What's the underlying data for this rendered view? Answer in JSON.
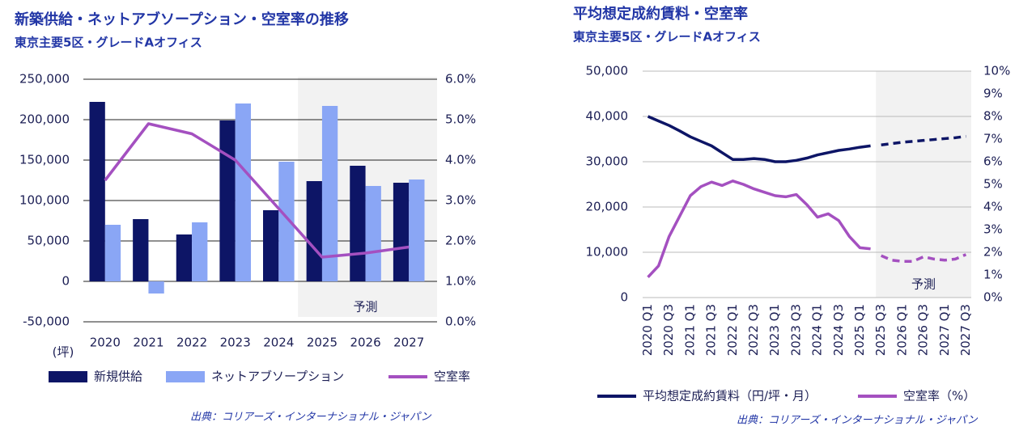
{
  "chart_data": [
    {
      "type": "bar",
      "title": "新築供給・ネットアブソープション・空室率の推移",
      "subtitle": "東京主要5区・グレードAオフィス",
      "unit_label": "(坪)",
      "source": "出典：コリアーズ・インターナショナル・ジャパン",
      "categories": [
        "2020",
        "2021",
        "2022",
        "2023",
        "2024",
        "2025",
        "2026",
        "2027"
      ],
      "series": [
        {
          "name": "新規供給",
          "color": "#0d1566",
          "values": [
            222000,
            77000,
            58000,
            199000,
            88000,
            124000,
            143000,
            122000
          ]
        },
        {
          "name": "ネットアブソープション",
          "color": "#8aa6f5",
          "values": [
            70000,
            -15000,
            73000,
            220000,
            148000,
            217000,
            118000,
            126000
          ]
        },
        {
          "name": "空室率",
          "color": "#a450c0",
          "type": "line",
          "axis": "y2",
          "values": [
            3.5,
            4.9,
            4.65,
            4.0,
            2.8,
            1.6,
            1.7,
            1.85
          ]
        }
      ],
      "ylim": [
        -50000,
        250000
      ],
      "yticks": [
        {
          "value": -50000,
          "label": "-50,000"
        },
        0,
        {
          "value": 50000,
          "label": "50,000"
        },
        {
          "value": 100000,
          "label": "100,000"
        },
        {
          "value": 150000,
          "label": "150,000"
        },
        {
          "value": 200000,
          "label": "200,000"
        },
        {
          "value": 250000,
          "label": "250,000"
        }
      ],
      "y2lim": [
        0,
        6
      ],
      "y2ticks": [
        {
          "value": 0,
          "label": "0.0%"
        },
        {
          "value": 1,
          "label": "1.0%"
        },
        {
          "value": 2,
          "label": "2.0%"
        },
        {
          "value": 3,
          "label": "3.0%"
        },
        {
          "value": 4,
          "label": "4.0%"
        },
        {
          "value": 5,
          "label": "5.0%"
        },
        {
          "value": 6,
          "label": "6.0%"
        }
      ],
      "grid": true,
      "forecast": {
        "label": "予測",
        "from": "2025"
      }
    },
    {
      "type": "line",
      "title": "平均想定成約賃料・空室率",
      "subtitle": "東京主要5区・グレードAオフィス",
      "source": "出典：コリアーズ・インターナショナル・ジャパン",
      "categories": [
        "2020 Q1",
        null,
        "2020 Q3",
        null,
        "2021 Q1",
        null,
        "2021 Q3",
        null,
        "2022 Q1",
        null,
        "2022 Q3",
        null,
        "2023 Q1",
        null,
        "2023 Q3",
        null,
        "2024 Q1",
        null,
        "2024 Q3",
        null,
        "2025 Q1",
        null,
        "2025 Q3",
        null,
        "2026 Q1",
        null,
        "2026 Q3",
        null,
        "2027 Q1",
        null,
        "2027 Q3"
      ],
      "series": [
        {
          "name": "平均想定成約賃料（円/坪・月）",
          "color": "#0d1566",
          "values": [
            40000,
            39000,
            38000,
            36800,
            35500,
            34500,
            33500,
            32000,
            30500,
            30500,
            30700,
            30500,
            30000,
            30000,
            30300,
            30800,
            31500,
            32000,
            32500,
            32800,
            33200,
            33500,
            33700,
            34000,
            34300,
            34500,
            34700,
            34900,
            35100,
            35300,
            35600
          ]
        },
        {
          "name": "空室率（%）",
          "color": "#a450c0",
          "axis": "y2",
          "values": [
            0.9,
            1.4,
            2.7,
            3.6,
            4.5,
            4.9,
            5.1,
            4.95,
            5.15,
            5.0,
            4.8,
            4.65,
            4.5,
            4.45,
            4.55,
            4.1,
            3.55,
            3.7,
            3.4,
            2.7,
            2.2,
            2.15,
            1.85,
            1.65,
            1.6,
            1.6,
            1.8,
            1.7,
            1.65,
            1.7,
            1.9
          ]
        }
      ],
      "ylim": [
        0,
        50000
      ],
      "yticks": [
        0,
        {
          "value": 10000,
          "label": "10,000"
        },
        {
          "value": 20000,
          "label": "20,000"
        },
        {
          "value": 30000,
          "label": "30,000"
        },
        {
          "value": 40000,
          "label": "40,000"
        },
        {
          "value": 50000,
          "label": "50,000"
        }
      ],
      "y2lim": [
        0,
        10
      ],
      "y2ticks": [
        {
          "value": 0,
          "label": "0%"
        },
        {
          "value": 1,
          "label": "1%"
        },
        {
          "value": 2,
          "label": "2%"
        },
        {
          "value": 3,
          "label": "3%"
        },
        {
          "value": 4,
          "label": "4%"
        },
        {
          "value": 5,
          "label": "5%"
        },
        {
          "value": 6,
          "label": "6%"
        },
        {
          "value": 7,
          "label": "7%"
        },
        {
          "value": 8,
          "label": "8%"
        },
        {
          "value": 9,
          "label": "9%"
        },
        {
          "value": 10,
          "label": "10%"
        }
      ],
      "grid": true,
      "forecast": {
        "label": "予測",
        "from": "2025 Q3",
        "dashed": true
      }
    }
  ]
}
